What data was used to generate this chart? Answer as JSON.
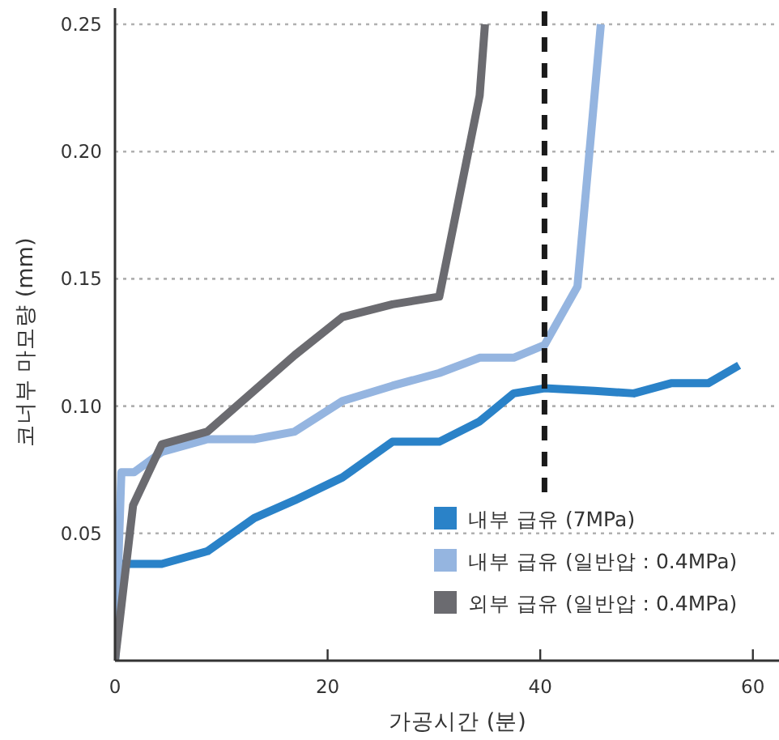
{
  "chart_data": {
    "type": "line",
    "xlabel": "가공시간 (분)",
    "ylabel": "코너부 마모량 (mm)",
    "xlim": [
      0,
      62
    ],
    "ylim": [
      0,
      0.25
    ],
    "xticks": [
      0,
      20,
      40,
      60
    ],
    "yticks": [
      0.05,
      {
        "value": 0.1,
        "label": "0.10"
      },
      0.15,
      {
        "value": 0.2,
        "label": "0.20"
      },
      0.25
    ],
    "grid": "y",
    "legend": "bottom right",
    "line_style": "solid",
    "marker": "none",
    "ref_lines": [
      {
        "axis": "x",
        "value": 40.4,
        "color": "#1a1a1a",
        "line_style": "dashed"
      }
    ],
    "series": [
      {
        "name": "내부 급유 (7MPa)",
        "color": "#2a82c8",
        "x": [
          0,
          0.6,
          4.4,
          8.7,
          13.1,
          16.9,
          21.4,
          26.1,
          30.5,
          34.3,
          37.5,
          40.4,
          45.1,
          48.8,
          52.3,
          55.8,
          58.7
        ],
        "values": [
          0,
          0.038,
          0.038,
          0.043,
          0.056,
          0.063,
          0.072,
          0.086,
          0.086,
          0.094,
          0.105,
          0.107,
          0.106,
          0.105,
          0.109,
          0.109,
          0.116
        ]
      },
      {
        "name": "내부 급유 (일반압 : 0.4MPa)",
        "color": "#95b5e0",
        "x": [
          0,
          0.6,
          1.8,
          4.4,
          8.7,
          13.1,
          16.9,
          21.4,
          26.1,
          30.5,
          34.3,
          37.5,
          40.4,
          43.5,
          45.7
        ],
        "values": [
          0,
          0.074,
          0.074,
          0.082,
          0.087,
          0.087,
          0.09,
          0.102,
          0.108,
          0.113,
          0.119,
          0.119,
          0.124,
          0.147,
          0.25
        ]
      },
      {
        "name": "외부 급유 (일반압 : 0.4MPa)",
        "color": "#6b6b70",
        "x": [
          0,
          1.7,
          4.4,
          8.7,
          16.9,
          21.4,
          26.1,
          30.5,
          34.3,
          34.8
        ],
        "values": [
          0,
          0.061,
          0.085,
          0.09,
          0.12,
          0.135,
          0.14,
          0.143,
          0.222,
          0.25
        ]
      }
    ]
  }
}
